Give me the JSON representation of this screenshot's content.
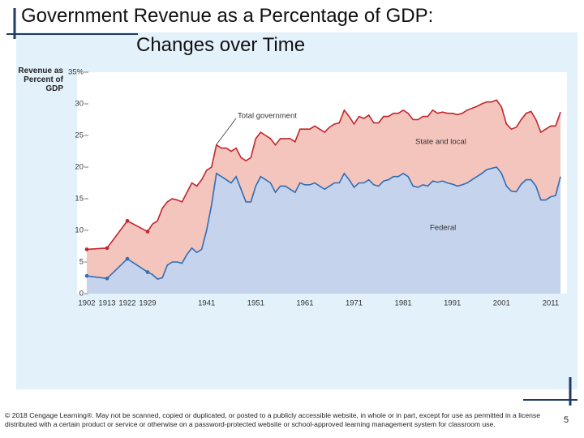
{
  "slide": {
    "title": [
      "Government Revenue as a Percentage of GDP:",
      "Changes over Time"
    ],
    "footer": "© 2018 Cengage Learning®. May not be scanned, copied or duplicated, or posted to a publicly accessible website, in whole or in part, except for use as permitted in a license distributed with a certain product or service or otherwise on a password-protected website or school-approved learning management system for classroom use.",
    "page_number": "5"
  },
  "chart_data": {
    "type": "area",
    "ylabel": "Revenue as Percent of GDP",
    "categories": [
      "1902",
      "1913",
      "1922",
      "1929",
      null,
      null,
      null,
      null,
      null,
      null,
      null,
      null,
      null,
      null,
      null,
      "1941",
      null,
      null,
      null,
      null,
      null,
      null,
      null,
      null,
      null,
      "1951",
      null,
      null,
      null,
      null,
      null,
      null,
      null,
      null,
      null,
      "1961",
      null,
      null,
      null,
      null,
      null,
      null,
      null,
      null,
      null,
      "1971",
      null,
      null,
      null,
      null,
      null,
      null,
      null,
      null,
      null,
      "1981",
      null,
      null,
      null,
      null,
      null,
      null,
      null,
      null,
      null,
      "1991",
      null,
      null,
      null,
      null,
      null,
      null,
      null,
      null,
      null,
      "2001",
      null,
      null,
      null,
      null,
      null,
      null,
      null,
      null,
      null,
      "2011",
      null,
      null
    ],
    "series": [
      {
        "name": "Federal",
        "color": "#2f6db5",
        "fill": "#c6d3ec",
        "values": [
          2.8,
          2.4,
          5.5,
          3.4,
          3.0,
          2.3,
          2.5,
          4.5,
          5.0,
          5.0,
          4.8,
          6.2,
          7.2,
          6.5,
          7.0,
          10.0,
          14.0,
          19.0,
          18.5,
          18.0,
          17.5,
          18.5,
          16.5,
          14.5,
          14.5,
          17.0,
          18.5,
          18.0,
          17.5,
          16.0,
          17.0,
          17.0,
          16.5,
          16.0,
          17.5,
          17.2,
          17.2,
          17.5,
          17.0,
          16.5,
          17.0,
          17.5,
          17.5,
          19.0,
          18.0,
          16.8,
          17.5,
          17.5,
          18.0,
          17.2,
          17.0,
          17.8,
          18.0,
          18.5,
          18.5,
          19.0,
          18.5,
          17.0,
          16.8,
          17.2,
          17.0,
          17.8,
          17.6,
          17.8,
          17.5,
          17.3,
          17.0,
          17.2,
          17.5,
          18.0,
          18.5,
          19.0,
          19.6,
          19.8,
          20.0,
          19.0,
          17.0,
          16.2,
          16.1,
          17.3,
          18.0,
          18.0,
          17.0,
          14.8,
          14.8,
          15.3,
          15.5,
          18.5
        ]
      },
      {
        "name": "Total government",
        "color": "#c0272d",
        "fill": "#f3c5bc",
        "values": [
          7.0,
          7.2,
          11.5,
          9.8,
          11.0,
          11.5,
          13.5,
          14.5,
          15.0,
          14.8,
          14.5,
          16.0,
          17.5,
          17.0,
          18.0,
          19.5,
          20.0,
          23.5,
          23.0,
          23.0,
          22.5,
          23.0,
          21.5,
          21.0,
          21.5,
          24.5,
          25.5,
          25.0,
          24.5,
          23.5,
          24.5,
          24.5,
          24.5,
          24.0,
          26.0,
          26.0,
          26.0,
          26.5,
          26.0,
          25.5,
          26.3,
          26.8,
          27.0,
          29.0,
          28.0,
          26.8,
          28.0,
          27.7,
          28.2,
          27.0,
          27.0,
          28.0,
          28.0,
          28.5,
          28.5,
          29.0,
          28.5,
          27.5,
          27.5,
          28.0,
          28.0,
          29.0,
          28.5,
          28.7,
          28.5,
          28.5,
          28.3,
          28.5,
          29.0,
          29.3,
          29.6,
          30.0,
          30.3,
          30.3,
          30.6,
          29.5,
          26.8,
          26.0,
          26.3,
          27.5,
          28.5,
          28.8,
          27.5,
          25.5,
          26.0,
          26.5,
          26.5,
          28.7
        ]
      }
    ],
    "annotations": [
      "Total government",
      "State and local",
      "Federal"
    ],
    "ylim": [
      0,
      35
    ],
    "yticks": [
      0,
      5,
      10,
      15,
      20,
      25,
      30,
      {
        "value": 35,
        "label": "35%"
      }
    ]
  }
}
